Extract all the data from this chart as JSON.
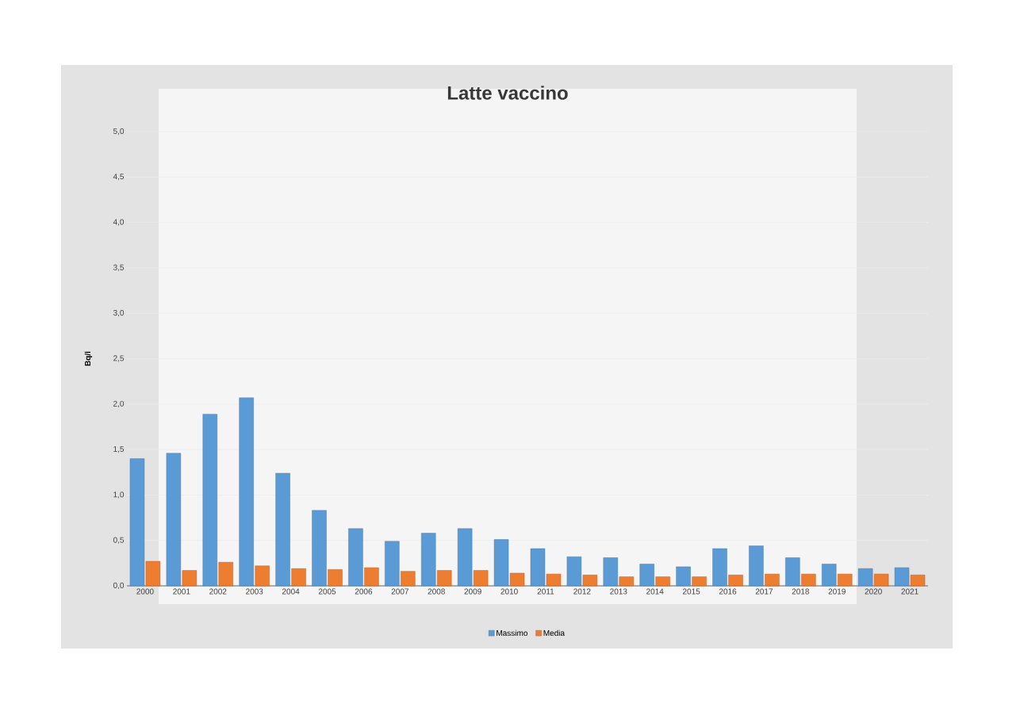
{
  "chart_data": {
    "type": "bar",
    "title": "Latte vaccino",
    "ylabel": "Bq/l",
    "categories": [
      "2000",
      "2001",
      "2002",
      "2003",
      "2004",
      "2005",
      "2006",
      "2007",
      "2008",
      "2009",
      "2010",
      "2011",
      "2012",
      "2013",
      "2014",
      "2015",
      "2016",
      "2017",
      "2018",
      "2019",
      "2020",
      "2021"
    ],
    "series": [
      {
        "name": "Massimo",
        "color": "#5b9bd5",
        "values": [
          1.4,
          1.46,
          1.89,
          2.07,
          1.24,
          0.83,
          0.63,
          0.49,
          0.58,
          0.63,
          0.51,
          0.41,
          0.32,
          0.31,
          0.24,
          0.21,
          0.41,
          0.44,
          0.31,
          0.24,
          0.19,
          0.2
        ]
      },
      {
        "name": "Media",
        "color": "#ed7d31",
        "values": [
          0.27,
          0.17,
          0.26,
          0.22,
          0.19,
          0.18,
          0.2,
          0.16,
          0.17,
          0.17,
          0.14,
          0.13,
          0.12,
          0.1,
          0.1,
          0.1,
          0.12,
          0.13,
          0.13,
          0.13,
          0.13,
          0.12
        ]
      }
    ],
    "ylim": [
      0,
      5
    ],
    "yticks": [
      {
        "value": 0,
        "label": "0,0"
      },
      {
        "value": 0.5,
        "label": "0,5"
      },
      {
        "value": 1,
        "label": "1,0"
      },
      {
        "value": 1.5,
        "label": "1,5"
      },
      {
        "value": 2,
        "label": "2,0"
      },
      {
        "value": 2.5,
        "label": "2,5"
      },
      {
        "value": 3,
        "label": "3,0"
      },
      {
        "value": 3.5,
        "label": "3,5"
      },
      {
        "value": 4,
        "label": "4,0"
      },
      {
        "value": 4.5,
        "label": "4,5"
      },
      {
        "value": 5,
        "label": "5,0"
      }
    ],
    "grid": "y",
    "legend": "bottom"
  }
}
